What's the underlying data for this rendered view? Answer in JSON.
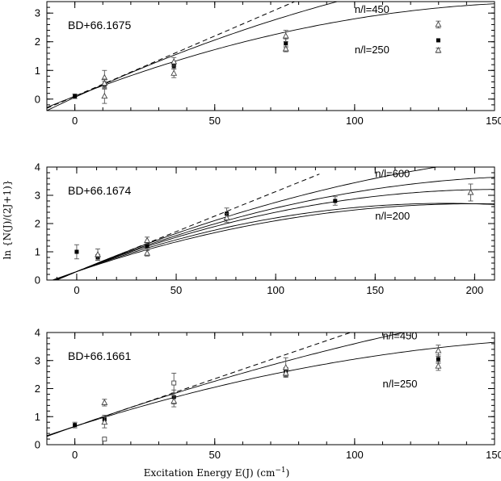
{
  "ylabel": "ln {N(J)/(2J+1)}",
  "xlabel": "Excitation Energy E(J) (cm",
  "xlabel_sup": "−1",
  "xlabel_close": ")",
  "chart_data": [
    {
      "type": "scatter",
      "star": "BD+66.1675",
      "xlim": [
        -10,
        150
      ],
      "ylim": [
        -0.4,
        3.4
      ],
      "xticks": [
        0,
        50,
        100,
        150
      ],
      "yticks": [
        0,
        1,
        2,
        3
      ],
      "dashed_line": {
        "slope": 0.042,
        "intercept": 0.1
      },
      "curves": [
        {
          "a": 0.045,
          "b": 0.0001,
          "c": 0.06
        },
        {
          "a": 0.038,
          "b": 0.00011,
          "c": 0.1
        }
      ],
      "curve_labels": [
        {
          "text": "n/l=450",
          "x": 100,
          "y": 3.0
        },
        {
          "text": "n/l=250",
          "x": 100,
          "y": 1.6
        }
      ],
      "points": [
        {
          "x": 0,
          "y": 0.1,
          "err": 0.08,
          "m": "sq"
        },
        {
          "x": 10.6,
          "y": 0.5,
          "err": 0.12,
          "m": "sq"
        },
        {
          "x": 10.6,
          "y": 0.75,
          "err": 0.25,
          "m": "tri"
        },
        {
          "x": 10.6,
          "y": 0.1,
          "err": 0.25,
          "m": "tri"
        },
        {
          "x": 10.6,
          "y": 0.55,
          "err": 0.15,
          "m": "tri"
        },
        {
          "x": 35.4,
          "y": 1.15,
          "err": 0.1,
          "m": "sq"
        },
        {
          "x": 35.4,
          "y": 1.3,
          "err": 0.15,
          "m": "tri"
        },
        {
          "x": 35.4,
          "y": 0.9,
          "err": 0.15,
          "m": "tri"
        },
        {
          "x": 75.4,
          "y": 1.95,
          "err": 0.15,
          "m": "sq"
        },
        {
          "x": 75.4,
          "y": 2.2,
          "err": 0.2,
          "m": "tri"
        },
        {
          "x": 75.4,
          "y": 1.75,
          "err": 0.1,
          "m": "tri"
        },
        {
          "x": 129.9,
          "y": 2.05,
          "err": 0,
          "m": "sq"
        },
        {
          "x": 129.9,
          "y": 2.6,
          "err": 0.12,
          "m": "tri"
        },
        {
          "x": 129.9,
          "y": 1.7,
          "err": 0.08,
          "m": "tri"
        }
      ]
    },
    {
      "type": "scatter",
      "star": "BD+66.1674",
      "xlim": [
        -15,
        210
      ],
      "ylim": [
        0,
        4
      ],
      "xticks": [
        0,
        50,
        100,
        150,
        200
      ],
      "yticks": [
        0,
        1,
        2,
        3,
        4
      ],
      "dashed_line": {
        "slope": 0.0283,
        "intercept": 0.3,
        "xmax": 122
      },
      "curves": [
        {
          "a": 0.0295,
          "b": 5e-05,
          "c": 0.3
        },
        {
          "a": 0.0285,
          "b": 6e-05,
          "c": 0.3
        },
        {
          "a": 0.0275,
          "b": 6.5e-05,
          "c": 0.3
        },
        {
          "a": 0.026,
          "b": 7e-05,
          "c": 0.3
        },
        {
          "a": 0.024,
          "b": 6e-05,
          "c": 0.3
        }
      ],
      "curve_labels": [
        {
          "text": "n/l=600",
          "x": 150,
          "y": 3.65
        },
        {
          "text": "n/l=200",
          "x": 150,
          "y": 2.15
        }
      ],
      "points": [
        {
          "x": 0,
          "y": 1.0,
          "err": 0.25,
          "m": "sq"
        },
        {
          "x": 10.6,
          "y": 0.8,
          "err": 0.1,
          "m": "sq"
        },
        {
          "x": 10.6,
          "y": 0.9,
          "err": 0.2,
          "m": "tri"
        },
        {
          "x": 35.4,
          "y": 1.2,
          "err": 0.15,
          "m": "sq"
        },
        {
          "x": 35.4,
          "y": 1.4,
          "err": 0.12,
          "m": "tri"
        },
        {
          "x": 35.4,
          "y": 0.95,
          "err": 0.1,
          "m": "tri"
        },
        {
          "x": 75.4,
          "y": 2.35,
          "err": 0.2,
          "m": "sq"
        },
        {
          "x": 75.4,
          "y": 2.2,
          "err": 0.15,
          "m": "tri"
        },
        {
          "x": 129.9,
          "y": 2.8,
          "err": 0.15,
          "m": "sq"
        },
        {
          "x": 198,
          "y": 3.1,
          "err": 0.3,
          "m": "tri"
        }
      ]
    },
    {
      "type": "scatter",
      "star": "BD+66.1661",
      "xlim": [
        -10,
        150
      ],
      "ylim": [
        0,
        4
      ],
      "xticks": [
        0,
        50,
        100,
        150
      ],
      "yticks": [
        0,
        1,
        2,
        3,
        4
      ],
      "dashed_line": {
        "slope": 0.034,
        "intercept": 0.65
      },
      "curves": [
        {
          "a": 0.035,
          "b": 5.5e-05,
          "c": 0.65
        },
        {
          "a": 0.032,
          "b": 8e-05,
          "c": 0.65
        }
      ],
      "curve_labels": [
        {
          "text": "n/l=450",
          "x": 110,
          "y": 3.75
        },
        {
          "text": "n/l=250",
          "x": 110,
          "y": 2.05
        }
      ],
      "points": [
        {
          "x": 0,
          "y": 0.7,
          "err": 0.1,
          "m": "sq"
        },
        {
          "x": 10.6,
          "y": 0.9,
          "err": 0.15,
          "m": "sq"
        },
        {
          "x": 10.6,
          "y": 1.5,
          "err": 0.12,
          "m": "tri"
        },
        {
          "x": 10.6,
          "y": 0.8,
          "err": 0.2,
          "m": "tri"
        },
        {
          "x": 10.6,
          "y": 0.2,
          "err": 0,
          "m": "open"
        },
        {
          "x": 35.4,
          "y": 1.7,
          "err": 0.25,
          "m": "sq"
        },
        {
          "x": 35.4,
          "y": 2.2,
          "err": 0.35,
          "m": "open"
        },
        {
          "x": 35.4,
          "y": 1.55,
          "err": 0.2,
          "m": "tri"
        },
        {
          "x": 75.4,
          "y": 2.6,
          "err": 0.15,
          "m": "sq"
        },
        {
          "x": 75.4,
          "y": 2.75,
          "err": 0.35,
          "m": "tri"
        },
        {
          "x": 75.4,
          "y": 2.55,
          "err": 0.12,
          "m": "tri"
        },
        {
          "x": 129.9,
          "y": 3.05,
          "err": 0.15,
          "m": "sq"
        },
        {
          "x": 129.9,
          "y": 3.35,
          "err": 0.2,
          "m": "tri"
        },
        {
          "x": 129.9,
          "y": 2.8,
          "err": 0.15,
          "m": "tri"
        }
      ]
    }
  ]
}
